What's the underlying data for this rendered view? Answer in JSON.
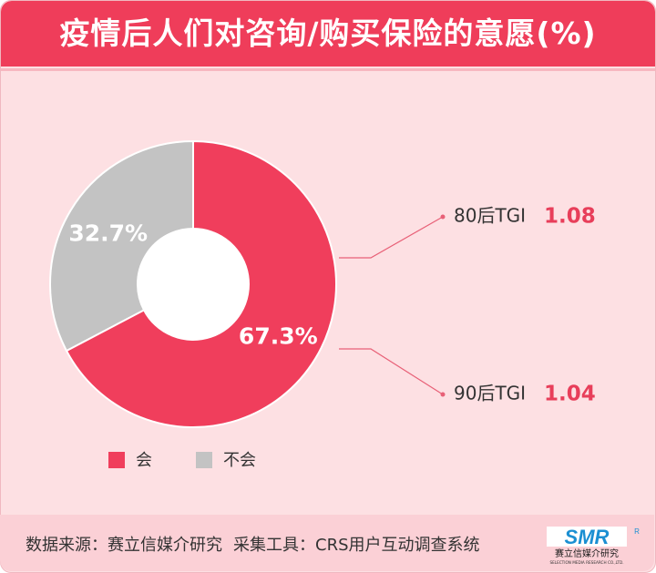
{
  "title": "疫情后人们对咨询/购买保险的意愿(%)",
  "chart_data": {
    "type": "pie",
    "variant": "donut",
    "labels": [
      "会",
      "不会"
    ],
    "values": [
      67.3,
      32.7
    ],
    "value_labels": [
      "67.3%",
      "32.7%"
    ],
    "colors": [
      "#f03e5c",
      "#c3c3c3"
    ],
    "legend_position": "bottom",
    "annotations": [
      {
        "label": "80后TGI",
        "value": "1.08"
      },
      {
        "label": "90后TGI",
        "value": "1.04"
      }
    ],
    "annotation_color": "#e83e5a"
  },
  "footer": {
    "source": "数据来源：赛立信媒介研究",
    "tool": "采集工具：CRS用户互动调查系统"
  },
  "logo": {
    "letters": "SMR",
    "name": "赛立信媒介研究",
    "tagline": "SELECTION MEDIA RESEARCH CO.,LTD.",
    "mark": "R"
  }
}
